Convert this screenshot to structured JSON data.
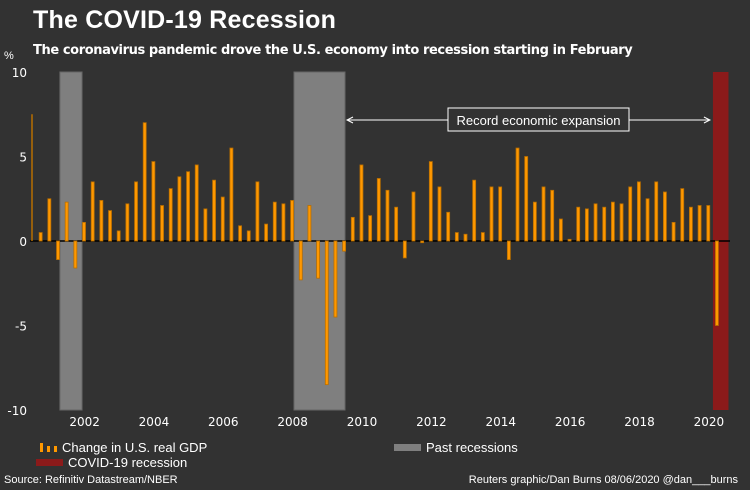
{
  "header": {
    "title": "The COVID-19 Recession",
    "subtitle": "The coronavirus pandemic drove the U.S. economy into recession starting in February"
  },
  "colors": {
    "background": "#323232",
    "bar": "#ff9800",
    "bar_edge": "#b86e00",
    "past_recession": "#7f7f7f",
    "covid_recession": "#8b1a1a",
    "zero_line": "#000000",
    "annotation": "#ffffff"
  },
  "annotation": {
    "label": "Record economic expansion",
    "from": "2009-06",
    "to": "2020-02"
  },
  "legend": {
    "gdp": "Change in U.S. real GDP",
    "past": "Past recessions",
    "covid": "COVID-19 recession"
  },
  "footer": {
    "source": "Source: Refinitiv Datastream/NBER",
    "credit": "Reuters graphic/Dan Burns 08/06/2020 @dan___burns"
  },
  "chart_data": {
    "type": "bar",
    "title": "The COVID-19 Recession",
    "ylabel": "%",
    "xlabel": "",
    "ylim": [
      -10,
      10
    ],
    "yticks": [
      10,
      5,
      0,
      -5,
      -10
    ],
    "xticks": [
      "2002",
      "2004",
      "2006",
      "2008",
      "2010",
      "2012",
      "2014",
      "2016",
      "2018",
      "2020"
    ],
    "grid": false,
    "legend_position": "bottom",
    "first_quarter": "2000-Q2",
    "series": [
      {
        "name": "Change in U.S. real GDP",
        "values": [
          7.5,
          0.5,
          2.5,
          -1.1,
          2.3,
          -1.6,
          1.1,
          3.5,
          2.4,
          1.8,
          0.6,
          2.2,
          3.5,
          7.0,
          4.7,
          2.1,
          3.1,
          3.8,
          4.1,
          4.5,
          1.9,
          3.6,
          2.6,
          5.5,
          0.9,
          0.6,
          3.5,
          1.0,
          2.3,
          2.2,
          2.4,
          -2.3,
          2.1,
          -2.2,
          -8.5,
          -4.5,
          -0.6,
          1.4,
          4.5,
          1.5,
          3.7,
          3.0,
          2.0,
          -1.0,
          2.9,
          -0.1,
          4.7,
          3.2,
          1.7,
          0.5,
          0.4,
          3.6,
          0.5,
          3.2,
          3.2,
          -1.1,
          5.5,
          5.0,
          2.3,
          3.2,
          3.0,
          1.3,
          0.1,
          2.0,
          1.9,
          2.2,
          2.0,
          2.3,
          2.2,
          3.2,
          3.5,
          2.5,
          3.5,
          2.9,
          1.1,
          3.1,
          2.0,
          2.1,
          2.1,
          -5.0
        ]
      }
    ],
    "shaded_periods": [
      {
        "name": "Past recessions",
        "start": "2001-03",
        "end": "2001-11",
        "type": "past"
      },
      {
        "name": "Past recessions",
        "start": "2007-12",
        "end": "2009-06",
        "type": "past"
      },
      {
        "name": "COVID-19 recession",
        "start": "2020-02",
        "end": "2020-06",
        "type": "covid"
      }
    ]
  }
}
